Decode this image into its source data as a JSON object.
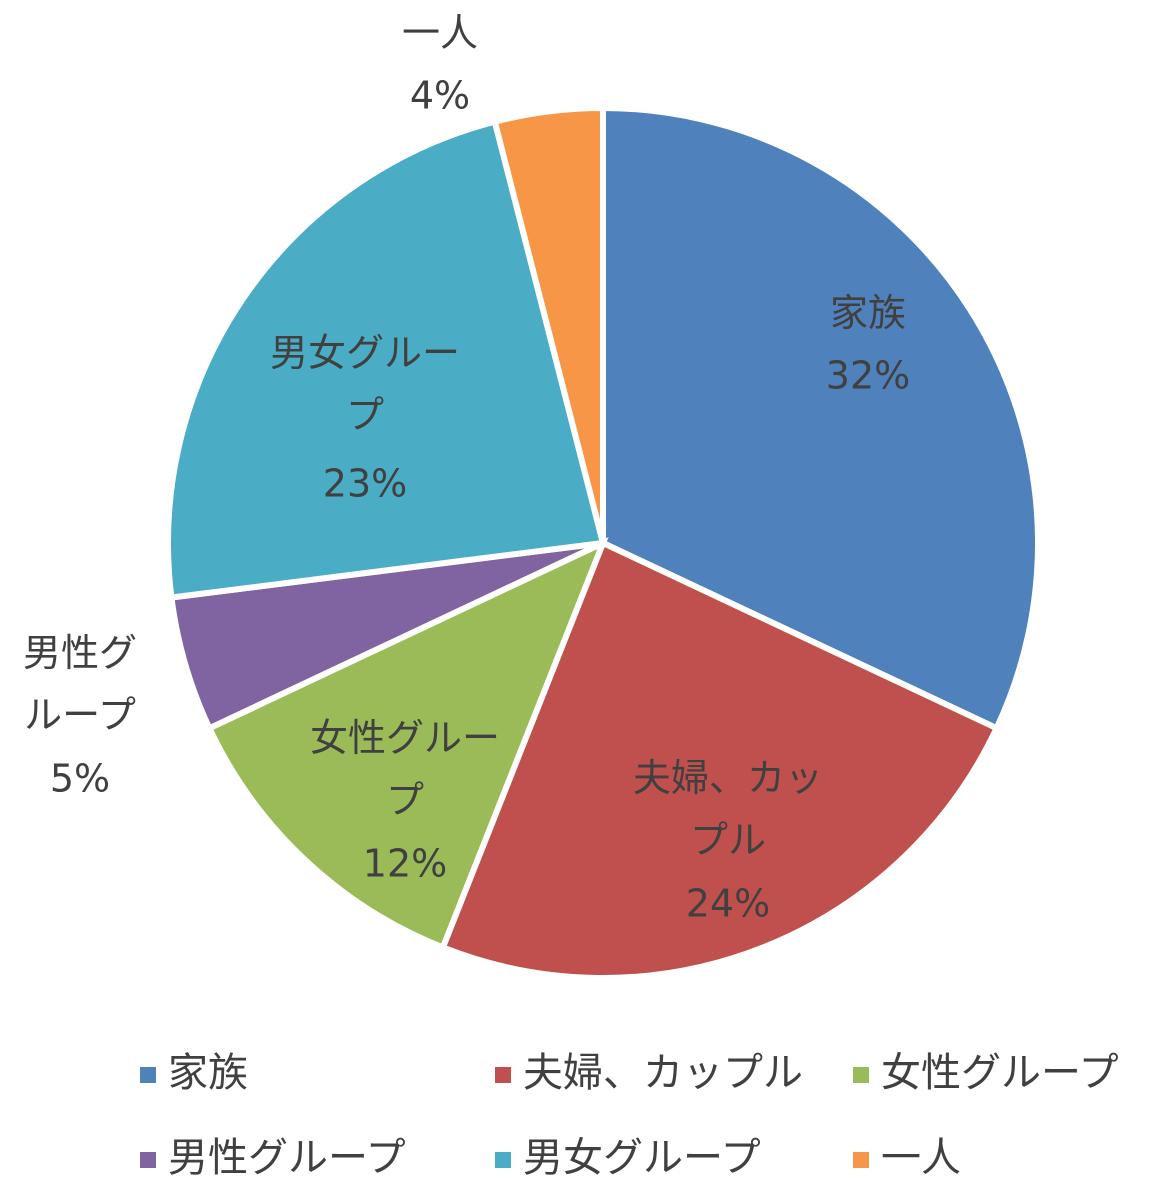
{
  "chart_data": {
    "type": "pie",
    "categories": [
      "家族",
      "夫婦、カップル",
      "女性グループ",
      "男性グループ",
      "男女グループ",
      "一人"
    ],
    "values": [
      32,
      24,
      12,
      5,
      23,
      4
    ],
    "value_labels": [
      "32%",
      "24%",
      "12%",
      "5%",
      "23%",
      "4%"
    ],
    "colors": [
      "#4f81bd",
      "#c0504d",
      "#9bbb59",
      "#8064a2",
      "#4bacc6",
      "#f79646"
    ],
    "legend": "bottom"
  }
}
